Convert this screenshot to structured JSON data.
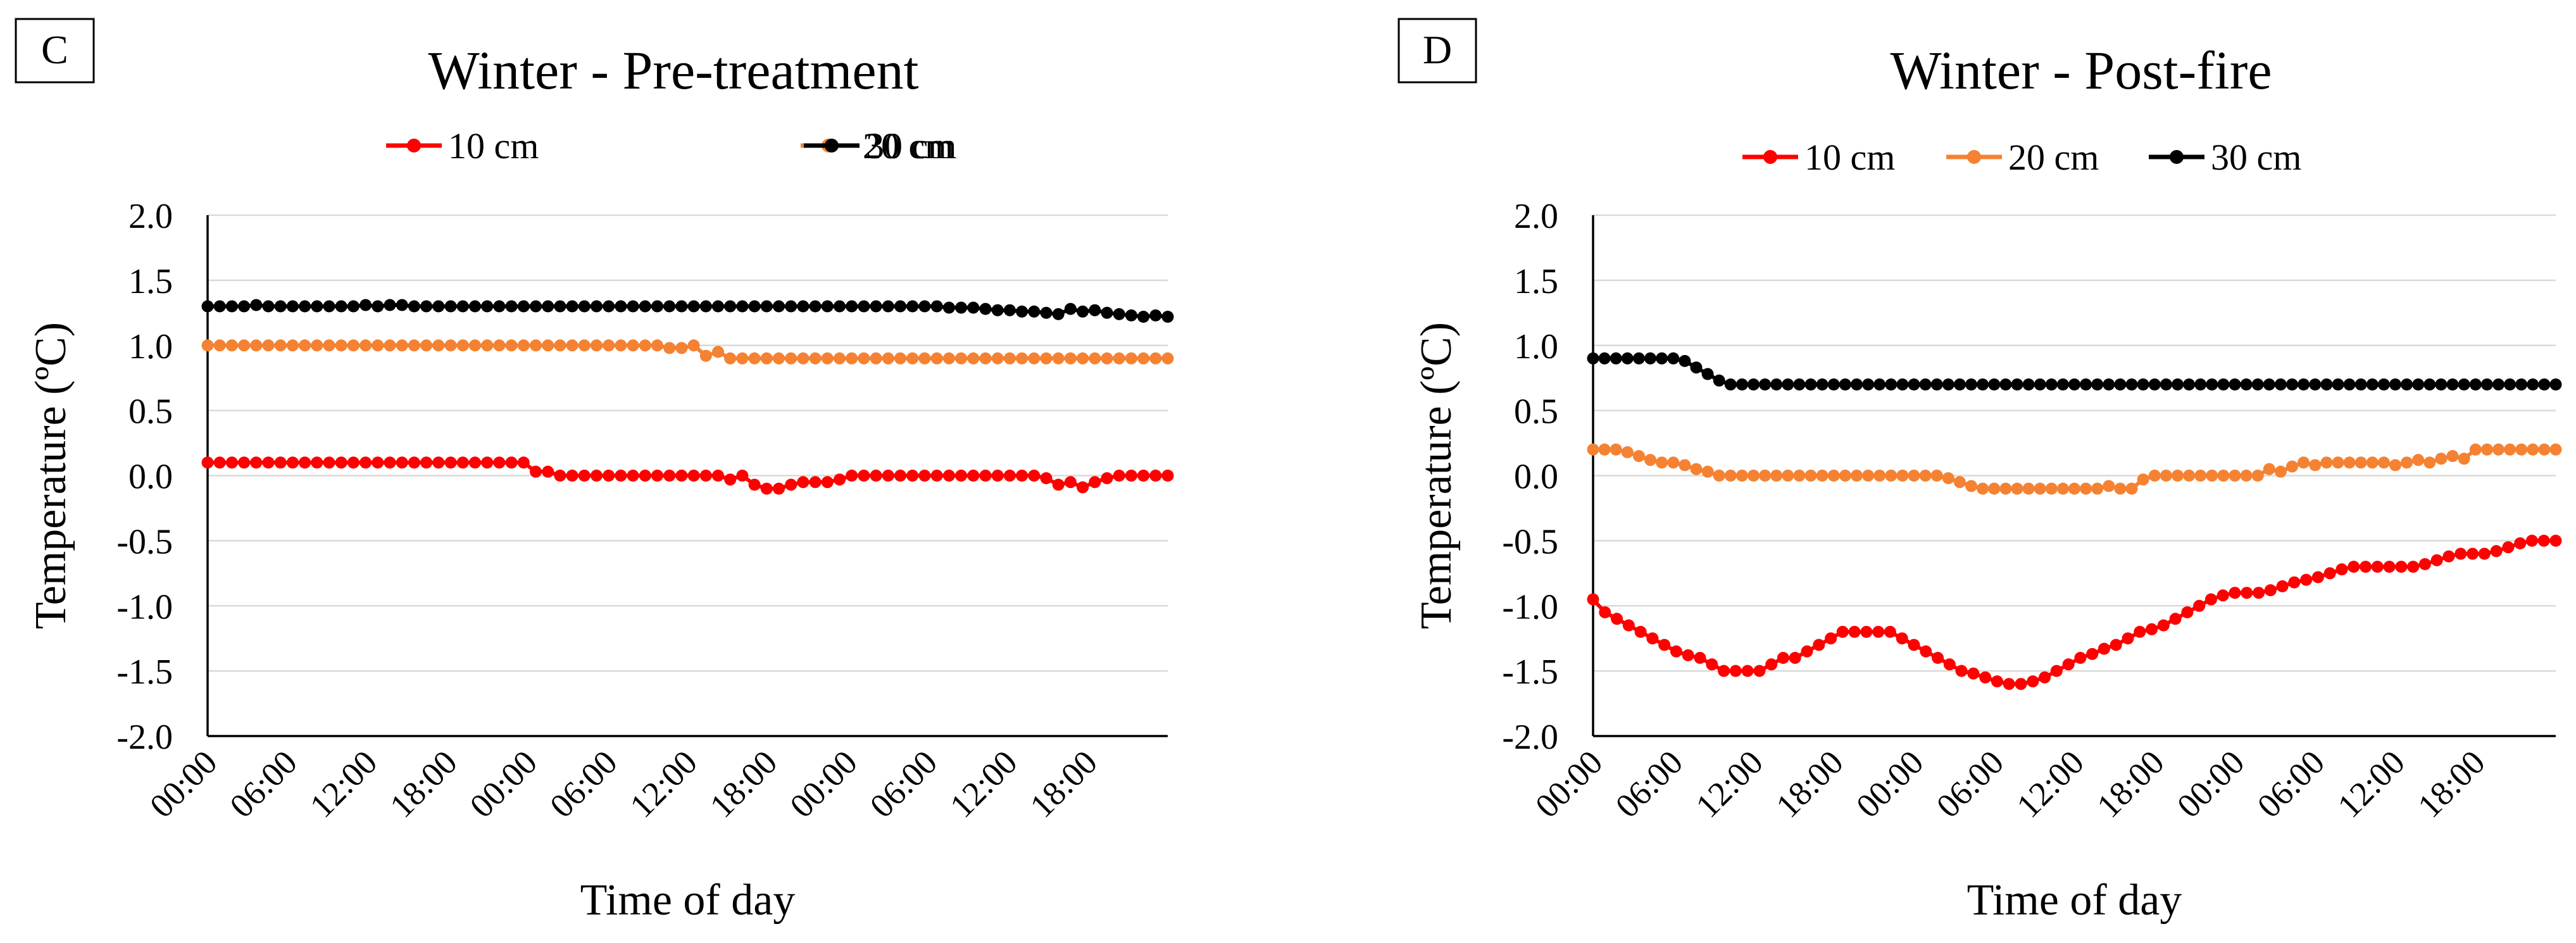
{
  "chart_data": [
    {
      "type": "line",
      "panel_label": "C",
      "title": "Winter - Pre-treatment",
      "xlabel": "Time of day",
      "ylabel": "Temperature (ºC)",
      "ylim": [
        -2.0,
        2.0
      ],
      "y_ticks": [
        "2.0",
        "1.5",
        "1.0",
        "0.5",
        "0.0",
        "-0.5",
        "-1.0",
        "-1.5",
        "-2.0"
      ],
      "x_tick_labels": [
        "00:00",
        "06:00",
        "12:00",
        "18:00",
        "00:00",
        "06:00",
        "12:00",
        "18:00",
        "00:00",
        "06:00",
        "12:00",
        "18:00"
      ],
      "grid": true,
      "legend_position": "top",
      "series": [
        {
          "name": "10 cm",
          "color": "#ff0000",
          "values": [
            0.1,
            0.1,
            0.1,
            0.1,
            0.1,
            0.1,
            0.1,
            0.1,
            0.1,
            0.1,
            0.1,
            0.1,
            0.1,
            0.1,
            0.1,
            0.1,
            0.1,
            0.1,
            0.1,
            0.1,
            0.1,
            0.1,
            0.1,
            0.1,
            0.1,
            0.1,
            0.1,
            0.03,
            0.03,
            0.0,
            0.0,
            0.0,
            0.0,
            0.0,
            0.0,
            0.0,
            0.0,
            0.0,
            0.0,
            0.0,
            0.0,
            0.0,
            0.0,
            -0.03,
            0.0,
            -0.07,
            -0.1,
            -0.1,
            -0.07,
            -0.05,
            -0.05,
            -0.05,
            -0.03,
            0.0,
            0.0,
            0.0,
            0.0,
            0.0,
            0.0,
            0.0,
            0.0,
            0.0,
            0.0,
            0.0,
            0.0,
            0.0,
            0.0,
            0.0,
            0.0,
            -0.02,
            -0.07,
            -0.05,
            -0.09,
            -0.05,
            -0.02,
            0.0,
            0.0,
            0.0,
            0.0,
            0.0
          ]
        },
        {
          "name": "20 cm",
          "color": "#f58232",
          "values": [
            1.0,
            1.0,
            1.0,
            1.0,
            1.0,
            1.0,
            1.0,
            1.0,
            1.0,
            1.0,
            1.0,
            1.0,
            1.0,
            1.0,
            1.0,
            1.0,
            1.0,
            1.0,
            1.0,
            1.0,
            1.0,
            1.0,
            1.0,
            1.0,
            1.0,
            1.0,
            1.0,
            1.0,
            1.0,
            1.0,
            1.0,
            1.0,
            1.0,
            1.0,
            1.0,
            1.0,
            1.0,
            1.0,
            0.98,
            0.98,
            1.0,
            0.92,
            0.95,
            0.9,
            0.9,
            0.9,
            0.9,
            0.9,
            0.9,
            0.9,
            0.9,
            0.9,
            0.9,
            0.9,
            0.9,
            0.9,
            0.9,
            0.9,
            0.9,
            0.9,
            0.9,
            0.9,
            0.9,
            0.9,
            0.9,
            0.9,
            0.9,
            0.9,
            0.9,
            0.9,
            0.9,
            0.9,
            0.9,
            0.9,
            0.9,
            0.9,
            0.9,
            0.9,
            0.9,
            0.9
          ]
        },
        {
          "name": "30 cm",
          "color": "#000000",
          "values": [
            1.3,
            1.3,
            1.3,
            1.3,
            1.31,
            1.3,
            1.3,
            1.3,
            1.3,
            1.3,
            1.3,
            1.3,
            1.3,
            1.31,
            1.3,
            1.31,
            1.31,
            1.3,
            1.3,
            1.3,
            1.3,
            1.3,
            1.3,
            1.3,
            1.3,
            1.3,
            1.3,
            1.3,
            1.3,
            1.3,
            1.3,
            1.3,
            1.3,
            1.3,
            1.3,
            1.3,
            1.3,
            1.3,
            1.3,
            1.3,
            1.3,
            1.3,
            1.3,
            1.3,
            1.3,
            1.3,
            1.3,
            1.3,
            1.3,
            1.3,
            1.3,
            1.3,
            1.3,
            1.3,
            1.3,
            1.3,
            1.3,
            1.3,
            1.3,
            1.3,
            1.3,
            1.29,
            1.29,
            1.29,
            1.28,
            1.27,
            1.27,
            1.26,
            1.26,
            1.25,
            1.24,
            1.28,
            1.26,
            1.27,
            1.25,
            1.24,
            1.23,
            1.22,
            1.23,
            1.22
          ]
        }
      ]
    },
    {
      "type": "line",
      "panel_label": "D",
      "title": "Winter - Post-fire",
      "xlabel": "Time of day",
      "ylabel": "Temperature (ºC)",
      "ylim": [
        -2.0,
        2.0
      ],
      "y_ticks": [
        "2.0",
        "1.5",
        "1.0",
        "0.5",
        "0.0",
        "-0.5",
        "-1.0",
        "-1.5",
        "-2.0"
      ],
      "x_tick_labels": [
        "00:00",
        "06:00",
        "12:00",
        "18:00",
        "00:00",
        "06:00",
        "12:00",
        "18:00",
        "00:00",
        "06:00",
        "12:00",
        "18:00"
      ],
      "grid": true,
      "legend_position": "top",
      "series": [
        {
          "name": "10 cm",
          "color": "#ff0000",
          "values": [
            -0.95,
            -1.05,
            -1.1,
            -1.15,
            -1.2,
            -1.25,
            -1.3,
            -1.35,
            -1.38,
            -1.4,
            -1.45,
            -1.5,
            -1.5,
            -1.5,
            -1.5,
            -1.45,
            -1.4,
            -1.4,
            -1.35,
            -1.3,
            -1.25,
            -1.2,
            -1.2,
            -1.2,
            -1.2,
            -1.2,
            -1.25,
            -1.3,
            -1.35,
            -1.4,
            -1.45,
            -1.5,
            -1.52,
            -1.55,
            -1.58,
            -1.6,
            -1.6,
            -1.58,
            -1.55,
            -1.5,
            -1.45,
            -1.4,
            -1.37,
            -1.33,
            -1.3,
            -1.25,
            -1.2,
            -1.18,
            -1.15,
            -1.1,
            -1.05,
            -1.0,
            -0.95,
            -0.92,
            -0.9,
            -0.9,
            -0.9,
            -0.88,
            -0.85,
            -0.82,
            -0.8,
            -0.78,
            -0.75,
            -0.72,
            -0.7,
            -0.7,
            -0.7,
            -0.7,
            -0.7,
            -0.7,
            -0.68,
            -0.65,
            -0.62,
            -0.6,
            -0.6,
            -0.6,
            -0.58,
            -0.55,
            -0.52,
            -0.5,
            -0.5,
            -0.5
          ]
        },
        {
          "name": "20 cm",
          "color": "#f58232",
          "values": [
            0.2,
            0.2,
            0.2,
            0.18,
            0.15,
            0.12,
            0.1,
            0.1,
            0.08,
            0.05,
            0.03,
            0.0,
            0.0,
            0.0,
            0.0,
            0.0,
            0.0,
            0.0,
            0.0,
            0.0,
            0.0,
            0.0,
            0.0,
            0.0,
            0.0,
            0.0,
            0.0,
            0.0,
            0.0,
            0.0,
            0.0,
            -0.02,
            -0.05,
            -0.08,
            -0.1,
            -0.1,
            -0.1,
            -0.1,
            -0.1,
            -0.1,
            -0.1,
            -0.1,
            -0.1,
            -0.1,
            -0.1,
            -0.08,
            -0.1,
            -0.1,
            -0.03,
            0.0,
            0.0,
            0.0,
            0.0,
            0.0,
            0.0,
            0.0,
            0.0,
            0.0,
            0.0,
            0.05,
            0.03,
            0.07,
            0.1,
            0.08,
            0.1,
            0.1,
            0.1,
            0.1,
            0.1,
            0.1,
            0.08,
            0.1,
            0.12,
            0.1,
            0.13,
            0.15,
            0.13,
            0.2,
            0.2,
            0.2,
            0.2,
            0.2,
            0.2,
            0.2,
            0.2
          ]
        },
        {
          "name": "30 cm",
          "color": "#000000",
          "values": [
            0.9,
            0.9,
            0.9,
            0.9,
            0.9,
            0.9,
            0.9,
            0.9,
            0.88,
            0.83,
            0.78,
            0.73,
            0.7,
            0.7,
            0.7,
            0.7,
            0.7,
            0.7,
            0.7,
            0.7,
            0.7,
            0.7,
            0.7,
            0.7,
            0.7,
            0.7,
            0.7,
            0.7,
            0.7,
            0.7,
            0.7,
            0.7,
            0.7,
            0.7,
            0.7,
            0.7,
            0.7,
            0.7,
            0.7,
            0.7,
            0.7,
            0.7,
            0.7,
            0.7,
            0.7,
            0.7,
            0.7,
            0.7,
            0.7,
            0.7,
            0.7,
            0.7,
            0.7,
            0.7,
            0.7,
            0.7,
            0.7,
            0.7,
            0.7,
            0.7,
            0.7,
            0.7,
            0.7,
            0.7,
            0.7,
            0.7,
            0.7,
            0.7,
            0.7,
            0.7,
            0.7,
            0.7,
            0.7,
            0.7,
            0.7,
            0.7,
            0.7,
            0.7,
            0.7,
            0.7,
            0.7,
            0.7,
            0.7,
            0.7,
            0.7
          ]
        }
      ]
    }
  ]
}
